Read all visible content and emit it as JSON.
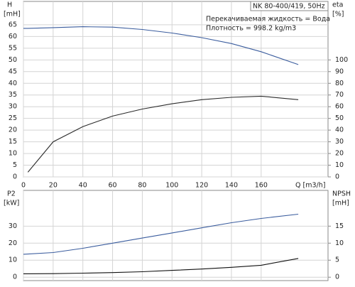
{
  "chart_data": [
    {
      "type": "line",
      "title": "NK 80-400/419, 50Hz",
      "annotations": [
        "Перекачиваемая жидкость = Вода",
        "Плотность = 998.2 kg/m3"
      ],
      "x_label": "Q [m3/h]",
      "y_label": "H",
      "y_unit": "[mH]",
      "y2_label": "eta",
      "y2_unit": "[%]",
      "x": [
        0,
        3,
        20,
        40,
        60,
        80,
        100,
        120,
        140,
        160,
        185
      ],
      "series": [
        {
          "color": "#3b5d9e",
          "values": [
            63.5,
            63.5,
            63.8,
            64.2,
            64,
            63,
            61.5,
            59.5,
            57,
            53.5,
            48
          ]
        },
        {
          "color": "#2b2b2b",
          "axis": "y2",
          "values": [
            null,
            4,
            30,
            43,
            52,
            58,
            62.5,
            66,
            68,
            69,
            66
          ]
        }
      ],
      "xlim": [
        0,
        205
      ],
      "xticks": [
        0,
        20,
        40,
        60,
        80,
        100,
        120,
        140,
        160
      ],
      "ylim": [
        0,
        75
      ],
      "yticks": [
        0,
        5,
        10,
        15,
        20,
        25,
        30,
        35,
        40,
        45,
        50,
        55,
        60,
        65
      ],
      "y2lim": [
        0,
        150
      ],
      "y2ticks": [
        0,
        10,
        20,
        30,
        40,
        50,
        60,
        70,
        80,
        90,
        100
      ],
      "grid": true
    },
    {
      "type": "line",
      "y_label": "P2",
      "y_unit": "[kW]",
      "y2_label": "NPSH",
      "y2_unit": "[mH]",
      "x": [
        0,
        20,
        40,
        60,
        80,
        100,
        120,
        140,
        160,
        185
      ],
      "series": [
        {
          "color": "#3b5d9e",
          "values": [
            13.5,
            14.5,
            17,
            20,
            23,
            26,
            29,
            32,
            34.5,
            37
          ]
        },
        {
          "color": "#111111",
          "axis": "y2",
          "values": [
            1,
            1.05,
            1.2,
            1.35,
            1.6,
            2,
            2.4,
            2.9,
            3.5,
            5.5
          ]
        }
      ],
      "xlim": [
        0,
        205
      ],
      "xticks": [
        0,
        20,
        40,
        60,
        80,
        100,
        120,
        140,
        160
      ],
      "ylim": [
        -2,
        51
      ],
      "yticks": [
        0,
        10,
        20,
        30
      ],
      "y2lim": [
        -1,
        25.5
      ],
      "y2ticks": [
        0,
        5,
        10,
        15
      ],
      "grid": true
    }
  ]
}
